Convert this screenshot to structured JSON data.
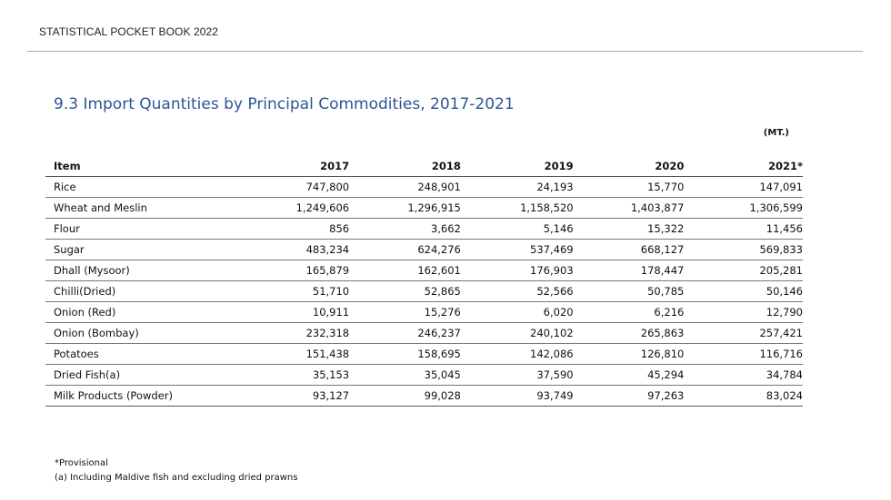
{
  "header": {
    "running_title": "STATISTICAL POCKET BOOK 2022"
  },
  "title": "9.3 Import Quantities by Principal Commodities, 2017-2021",
  "unit": "(MT.)",
  "table": {
    "columns": [
      "Item",
      "2017",
      "2018",
      "2019",
      "2020",
      "2021*"
    ],
    "rows": [
      [
        "Rice",
        "747,800",
        "248,901",
        "24,193",
        "15,770",
        "147,091"
      ],
      [
        "Wheat and Meslin",
        "1,249,606",
        "1,296,915",
        "1,158,520",
        "1,403,877",
        "1,306,599"
      ],
      [
        "Flour",
        "856",
        "3,662",
        "5,146",
        "15,322",
        "11,456"
      ],
      [
        "Sugar",
        "483,234",
        "624,276",
        "537,469",
        "668,127",
        "569,833"
      ],
      [
        "Dhall (Mysoor)",
        "165,879",
        "162,601",
        "176,903",
        "178,447",
        "205,281"
      ],
      [
        "Chilli(Dried)",
        "51,710",
        "52,865",
        "52,566",
        "50,785",
        "50,146"
      ],
      [
        "Onion (Red)",
        "10,911",
        "15,276",
        "6,020",
        "6,216",
        "12,790"
      ],
      [
        "Onion (Bombay)",
        "232,318",
        "246,237",
        "240,102",
        "265,863",
        "257,421"
      ],
      [
        "Potatoes",
        "151,438",
        "158,695",
        "142,086",
        "126,810",
        "116,716"
      ],
      [
        "Dried Fish(a)",
        "35,153",
        "35,045",
        "37,590",
        "45,294",
        "34,784"
      ],
      [
        "Milk Products (Powder)",
        "93,127",
        "99,028",
        "93,749",
        "97,263",
        "83,024"
      ]
    ]
  },
  "notes": {
    "provisional": "*Provisional",
    "note_a": "(a) Including Maldive fish and excluding dried prawns"
  }
}
